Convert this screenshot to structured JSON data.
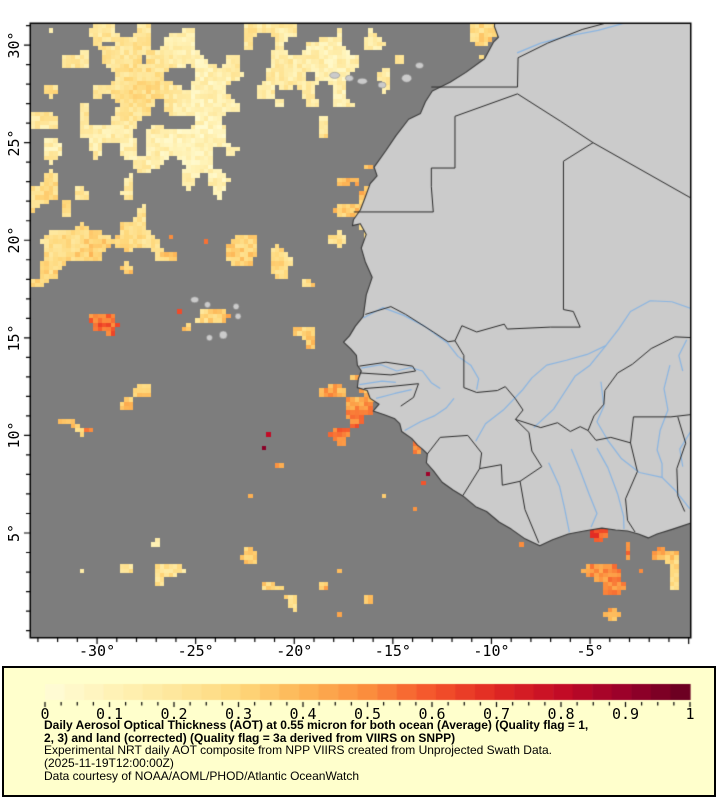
{
  "map": {
    "y_axis": {
      "labels": [
        "30°",
        "25°",
        "20°",
        "15°",
        "10°",
        "5°"
      ],
      "values": [
        30,
        25,
        20,
        15,
        10,
        5
      ],
      "minor_step_deg": 1
    },
    "x_axis": {
      "labels": [
        "-30°",
        "-25°",
        "-20°",
        "-15°",
        "-10°",
        "-5°"
      ],
      "values": [
        -30,
        -25,
        -20,
        -15,
        -10,
        -5
      ],
      "minor_step_deg": 1
    }
  },
  "colorbar": {
    "tick_labels": [
      "0",
      "0.1",
      "0.2",
      "0.3",
      "0.4",
      "0.5",
      "0.6",
      "0.7",
      "0.8",
      "0.9",
      "1"
    ],
    "tick_values": [
      0,
      0.1,
      0.2,
      0.3,
      0.4,
      0.5,
      0.6,
      0.7,
      0.8,
      0.9,
      1
    ],
    "minor_tick_step": 0.025,
    "min": 0,
    "max": 1
  },
  "legend": {
    "title_line1": "Daily Aerosol Optical Thickness (AOT) at 0.55 micron for both ocean (Average) (Quality flag = 1,",
    "title_line2": "2, 3) and land (corrected) (Quality flag = 3a derived from VIIRS on SNPP)",
    "line_experimental": "Experimental NRT daily AOT composite from NPP VIIRS created from Unprojected Swath Data.",
    "line_timestamp": "(2025-11-19T12:00:00Z)",
    "line_courtesy": "Data courtesy of NOAA/AOML/PHOD/Atlantic OceanWatch"
  },
  "colors": {
    "page_bg": "#ffffff",
    "ocean_nodata": "#7d7d7d",
    "land": "#cbcbcb",
    "coastline": "#3a3a3a",
    "border_line": "#2b2b2b",
    "river": "#8ab5e2",
    "panel_bg": "#ffffcc",
    "frame": "#000000",
    "colormap_stops": [
      "#fffdd8",
      "#fff3b8",
      "#fee79c",
      "#fed87c",
      "#fdb555",
      "#fb8d3d",
      "#f4542b",
      "#e02823",
      "#c30b26",
      "#99002a",
      "#650021"
    ]
  }
}
